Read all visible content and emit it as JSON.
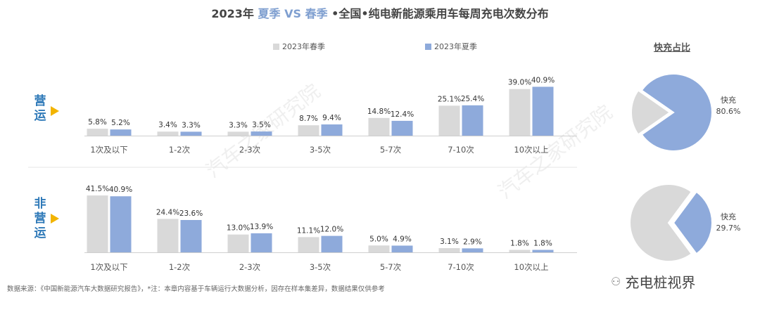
{
  "title": {
    "prefix": "2023年",
    "summer": "夏季",
    "vs": "VS",
    "spring": "春季",
    "suffix": "•全国•纯电新能源乘用车每周充电次数分布"
  },
  "legend": [
    {
      "label": "2023年春季",
      "color": "#d9d9d9"
    },
    {
      "label": "2023年夏季",
      "color": "#8eaadb"
    }
  ],
  "sections": {
    "operating": "营运",
    "non_operating": "非营运"
  },
  "pie_title": "快充占比",
  "watermark": "汽车之家研究院",
  "source_note": "数据来源：《中国新能源汽车大数据研究报告》，*注：本章内容基于车辆运行大数据分析，因存在样本集差异，数据结果仅供参考",
  "brand": {
    "icon": "wechat-icon",
    "text": "充电桩视界"
  },
  "colors": {
    "spring": "#d9d9d9",
    "summer": "#8eaadb",
    "accent": "#2e79b8",
    "arrow": "#f2b400"
  },
  "chart_data": [
    {
      "type": "bar",
      "group": "营运",
      "categories": [
        "1次及以下",
        "1-2次",
        "2-3次",
        "3-5次",
        "5-7次",
        "7-10次",
        "10次以上"
      ],
      "series": [
        {
          "name": "2023年春季",
          "values": [
            5.8,
            3.4,
            3.3,
            8.7,
            14.8,
            25.1,
            39.0
          ],
          "labels": [
            "5.8%",
            "3.4%",
            "3.3%",
            "8.7%",
            "14.8%",
            "25.1%",
            "39.0%"
          ]
        },
        {
          "name": "2023年夏季",
          "values": [
            5.2,
            3.3,
            3.5,
            9.4,
            12.4,
            25.4,
            40.9
          ],
          "labels": [
            "5.2%",
            "3.3%",
            "3.5%",
            "9.4%",
            "12.4%",
            "25.4%",
            "40.9%"
          ]
        }
      ]
    },
    {
      "type": "bar",
      "group": "非营运",
      "categories": [
        "1次及以下",
        "1-2次",
        "2-3次",
        "3-5次",
        "5-7次",
        "7-10次",
        "10次以上"
      ],
      "series": [
        {
          "name": "2023年春季",
          "values": [
            41.5,
            24.4,
            13.0,
            11.1,
            5.0,
            3.1,
            1.8
          ],
          "labels": [
            "41.5%",
            "24.4%",
            "13.0%",
            "11.1%",
            "5.0%",
            "3.1%",
            "1.8%"
          ]
        },
        {
          "name": "2023年夏季",
          "values": [
            40.9,
            23.6,
            13.9,
            12.0,
            4.9,
            2.9,
            1.8
          ],
          "labels": [
            "40.9%",
            "23.6%",
            "13.9%",
            "12.0%",
            "4.9%",
            "2.9%",
            "1.8%"
          ]
        }
      ]
    },
    {
      "type": "pie",
      "group": "营运",
      "slices": [
        {
          "name": "快充",
          "value": 80.6,
          "label": "80.6%",
          "color": "#8eaadb"
        },
        {
          "name": "",
          "value": 19.4,
          "color": "#d9d9d9"
        }
      ]
    },
    {
      "type": "pie",
      "group": "非营运",
      "slices": [
        {
          "name": "快充",
          "value": 29.7,
          "label": "29.7%",
          "color": "#8eaadb"
        },
        {
          "name": "",
          "value": 70.3,
          "color": "#d9d9d9"
        }
      ]
    }
  ]
}
